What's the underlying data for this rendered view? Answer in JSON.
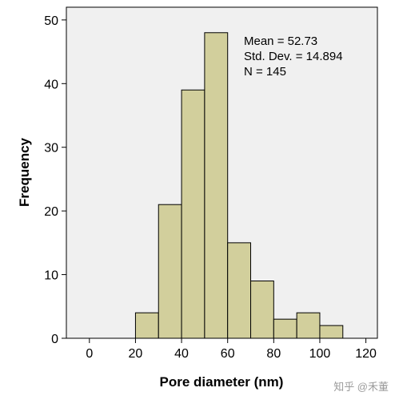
{
  "chart_data": {
    "type": "histogram",
    "xlabel": "Pore diameter (nm)",
    "ylabel": "Frequency",
    "xlim": [
      -10,
      125
    ],
    "ylim": [
      0,
      52
    ],
    "xticks": [
      0,
      20,
      40,
      60,
      80,
      100,
      120
    ],
    "yticks": [
      0,
      10,
      20,
      30,
      40,
      50
    ],
    "bin_width": 10,
    "bins": [
      {
        "start": 20,
        "end": 30,
        "count": 4
      },
      {
        "start": 30,
        "end": 40,
        "count": 21
      },
      {
        "start": 40,
        "end": 50,
        "count": 39
      },
      {
        "start": 50,
        "end": 60,
        "count": 48
      },
      {
        "start": 60,
        "end": 70,
        "count": 15
      },
      {
        "start": 70,
        "end": 80,
        "count": 9
      },
      {
        "start": 80,
        "end": 90,
        "count": 3
      },
      {
        "start": 90,
        "end": 100,
        "count": 4
      },
      {
        "start": 100,
        "end": 110,
        "count": 2
      }
    ],
    "annotations": [
      "Mean = 52.73",
      "Std. Dev. = 14.894",
      "N = 145"
    ],
    "grid": false,
    "colors": {
      "plot_background": "#f0f0f0",
      "bar_fill": "#d2cf9c",
      "bar_stroke": "#000000",
      "axis": "#000000"
    }
  },
  "watermark": "知乎 @禾董"
}
